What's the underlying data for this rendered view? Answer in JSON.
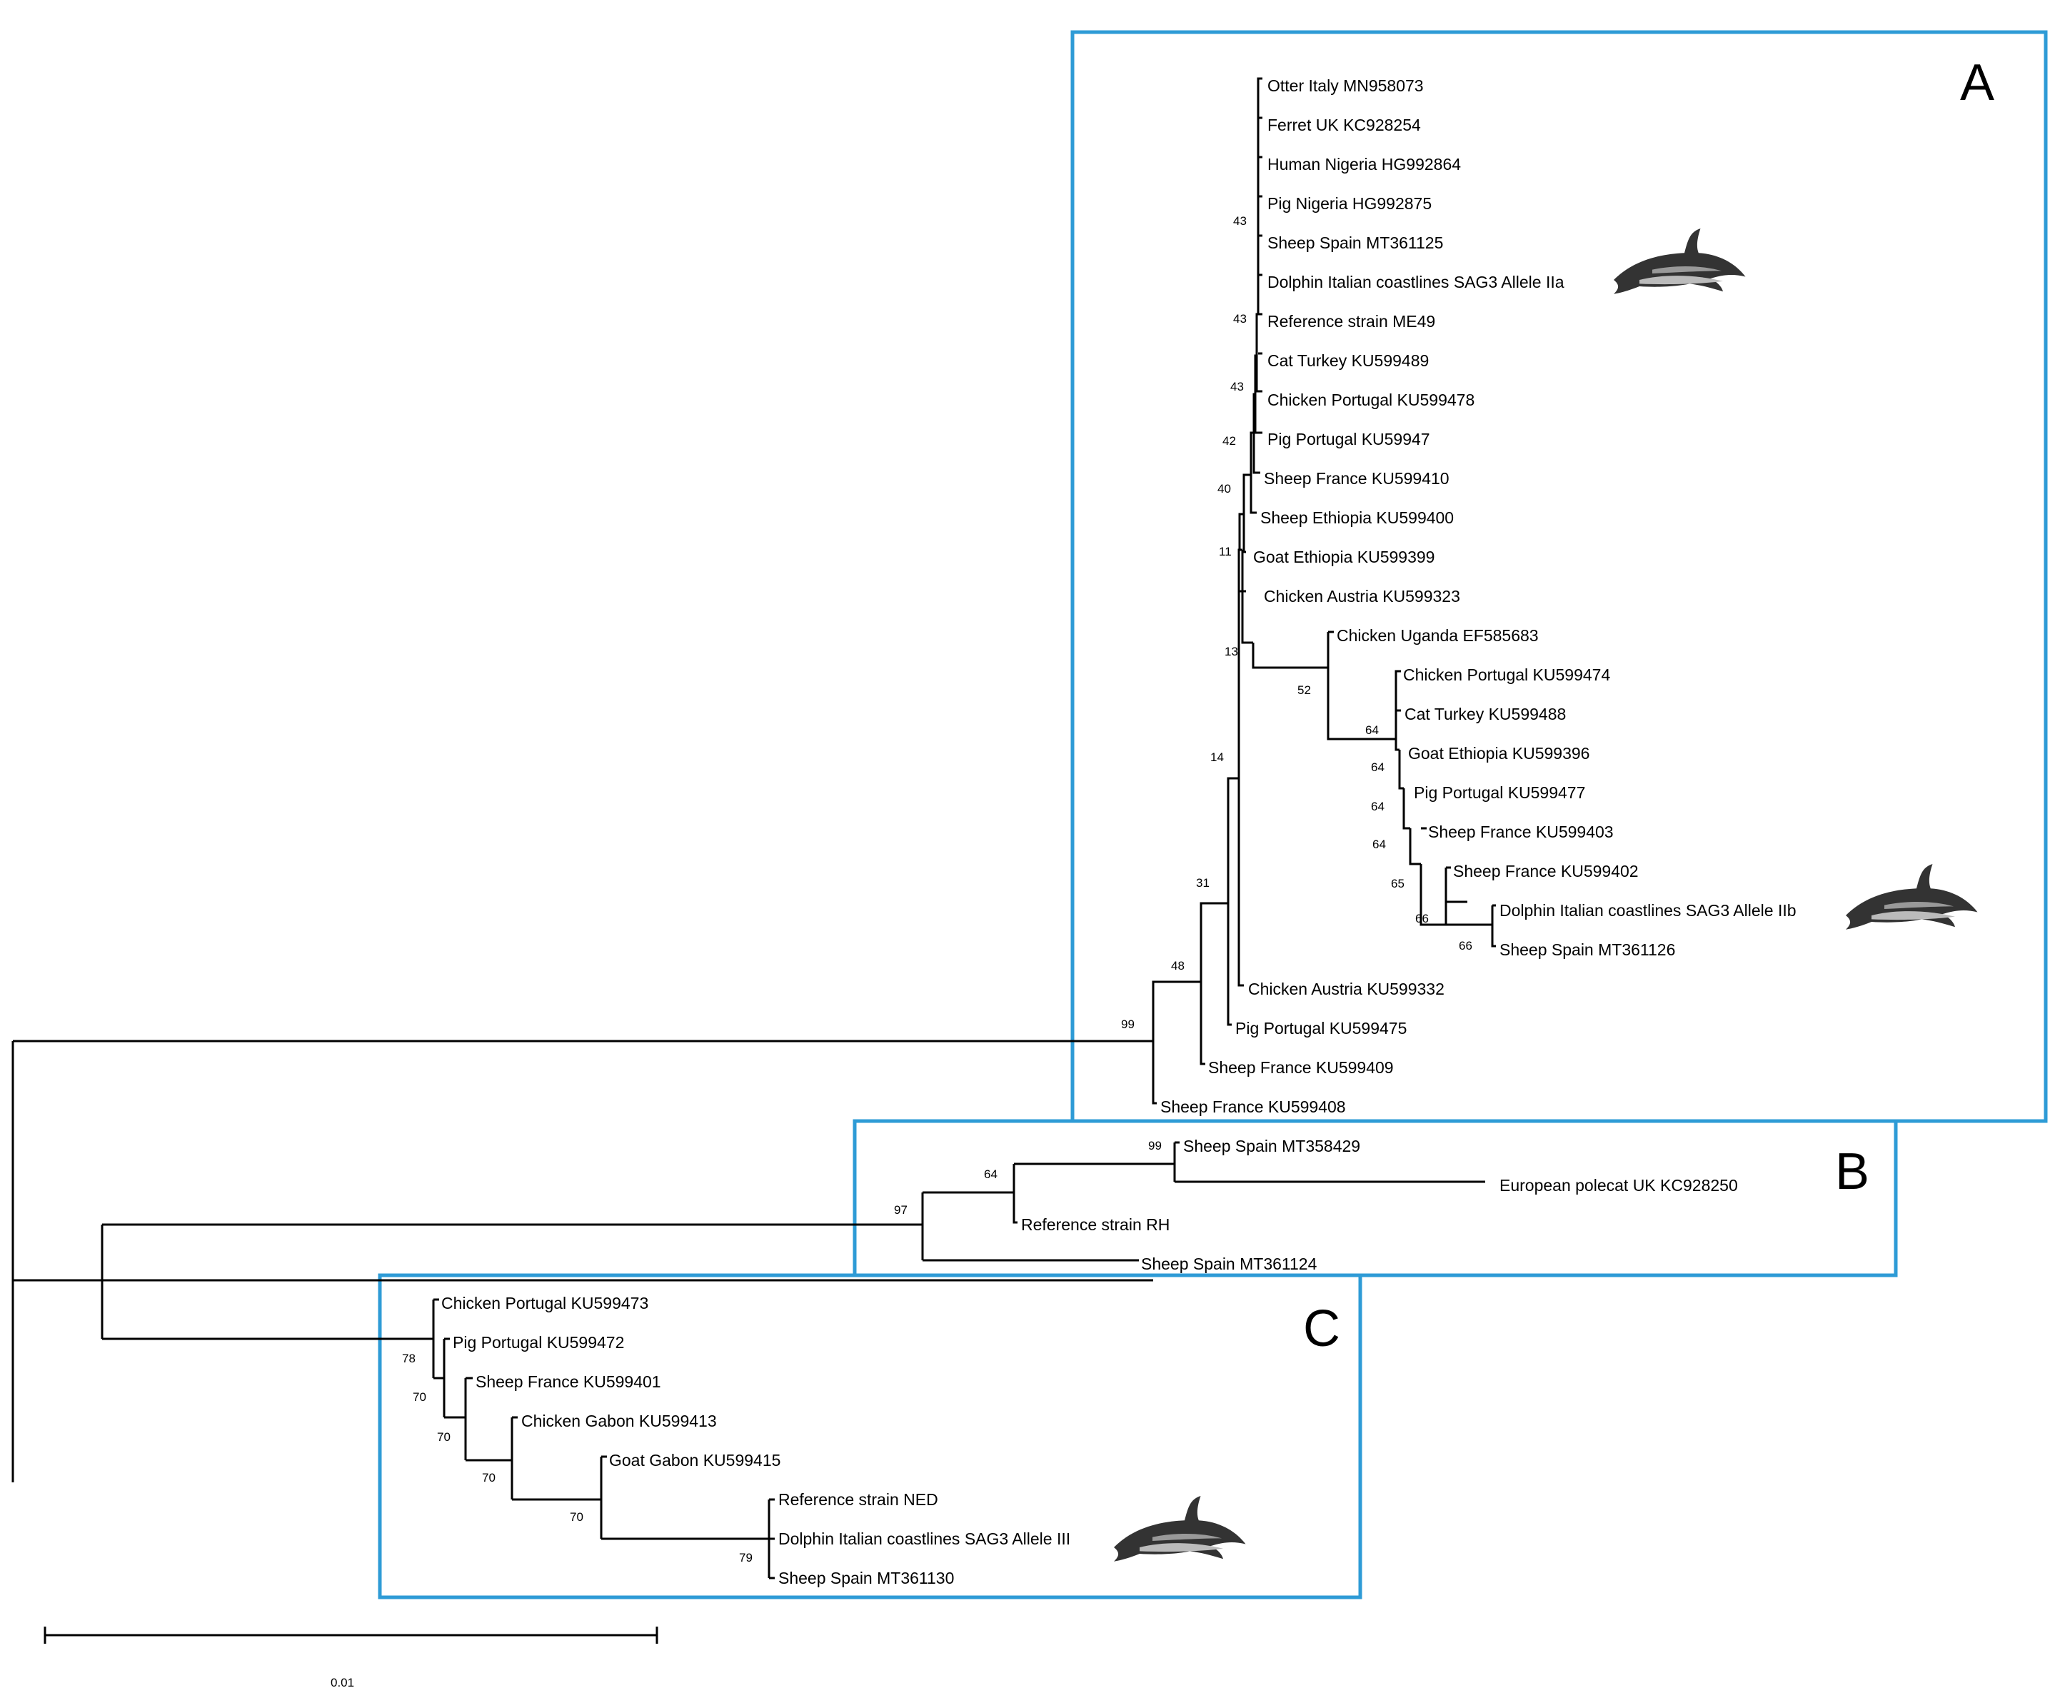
{
  "clade_labels": {
    "a": "A",
    "b": "B",
    "c": "C"
  },
  "scale_bar": {
    "label": "0.01"
  },
  "leaves": [
    "Otter Italy MN958073",
    "Ferret UK KC928254",
    "Human Nigeria HG992864",
    "Pig Nigeria HG992875",
    "Sheep Spain MT361125",
    "Dolphin Italian coastlines SAG3 Allele IIa",
    "Reference strain ME49",
    "Cat Turkey KU599489",
    "Chicken Portugal KU599478",
    "Pig Portugal KU59947",
    "Sheep France KU599410",
    "Sheep Ethiopia KU599400",
    "Goat Ethiopia KU599399",
    "Chicken Austria KU599323",
    "Chicken Uganda EF585683",
    "Chicken Portugal KU599474",
    "Cat Turkey KU599488",
    "Goat Ethiopia KU599396",
    "Pig Portugal KU599477",
    "Sheep France KU599403",
    "Sheep France KU599402",
    "Dolphin Italian coastlines SAG3 Allele IIb",
    "Sheep Spain MT361126",
    "Chicken Austria KU599332",
    "Pig Portugal KU599475",
    "Sheep France KU599409",
    "Sheep France KU599408",
    "Sheep Spain MT358429",
    "European polecat UK KC928250",
    "Reference strain RH",
    "Sheep Spain MT361124",
    "Chicken Portugal KU599473",
    "Pig Portugal KU599472",
    "Sheep France KU599401",
    "Chicken Gabon KU599413",
    "Goat Gabon KU599415",
    "Reference strain NED",
    "Dolphin Italian coastlines SAG3 Allele III",
    "Sheep Spain MT361130"
  ],
  "bootstrap": [
    "43",
    "43",
    "43",
    "42",
    "40",
    "11",
    "13",
    "52",
    "64",
    "64",
    "64",
    "64",
    "65",
    "66",
    "66",
    "14",
    "31",
    "48",
    "99",
    "99",
    "64",
    "97",
    "78",
    "70",
    "70",
    "70",
    "70",
    "79"
  ],
  "colors": {
    "box": "#2e9bd6",
    "line": "#000000",
    "text": "#000000"
  }
}
